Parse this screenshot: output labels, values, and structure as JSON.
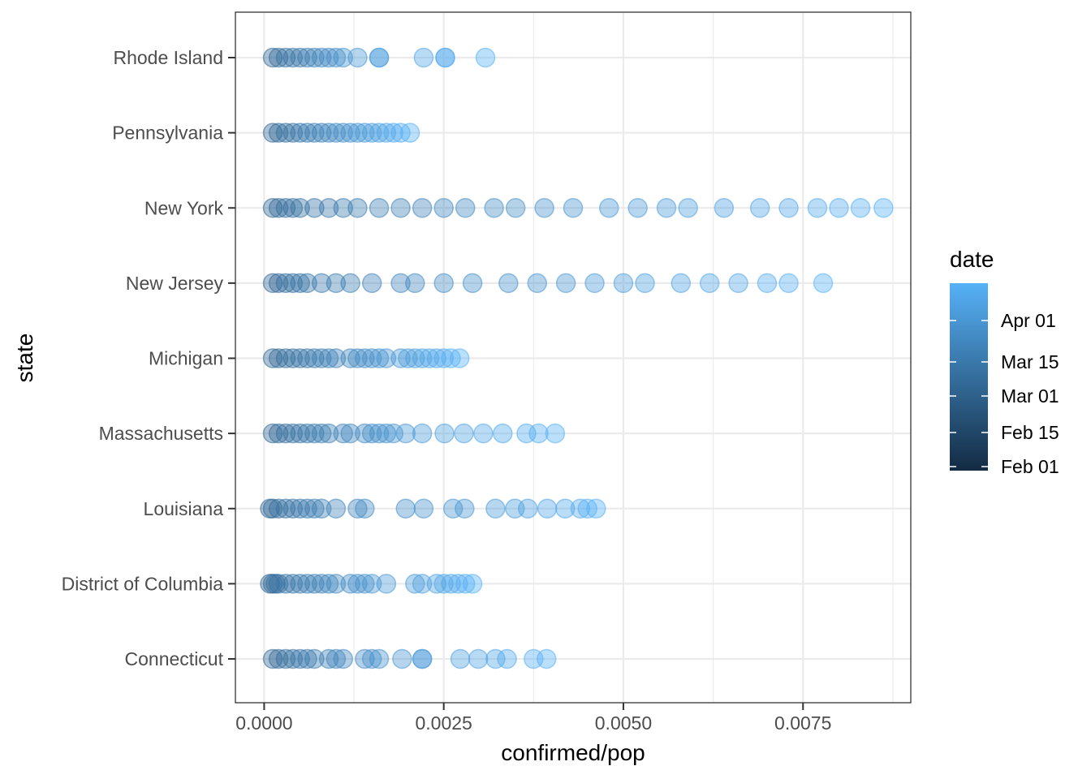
{
  "chart_data": {
    "type": "scatter",
    "xlabel": "confirmed/pop",
    "ylabel": "state",
    "xlim": [
      -0.0004,
      0.009
    ],
    "x_ticks": [
      0.0,
      0.0025,
      0.005,
      0.0075
    ],
    "x_tick_labels": [
      "0.0000",
      "0.0025",
      "0.0050",
      "0.0075"
    ],
    "grid": true,
    "legend": {
      "title": "date",
      "placement": "right",
      "labels": [
        "Apr 01",
        "Mar 15",
        "Mar 01",
        "Feb 15",
        "Feb 01"
      ],
      "color_low": "#132B43",
      "color_high": "#56B1F7"
    },
    "categories": [
      "Connecticut",
      "District of Columbia",
      "Louisiana",
      "Massachusetts",
      "Michigan",
      "New Jersey",
      "New York",
      "Pennsylvania",
      "Rhode Island"
    ],
    "series": [
      {
        "state": "Connecticut",
        "x": [
          0.00012,
          0.0002,
          0.0003,
          0.0004,
          0.0005,
          0.0006,
          0.0007,
          0.0009,
          0.001,
          0.0011,
          0.0014,
          0.0015,
          0.0016,
          0.00192,
          0.0022,
          0.0022,
          0.00273,
          0.00298,
          0.00322,
          0.00338,
          0.00375,
          0.00393
        ]
      },
      {
        "state": "District of Columbia",
        "x": [
          8e-05,
          0.00012,
          0.00016,
          0.0002,
          0.0003,
          0.0004,
          0.0005,
          0.0006,
          0.0007,
          0.0008,
          0.0009,
          0.001,
          0.0012,
          0.0013,
          0.0014,
          0.0015,
          0.0017,
          0.0021,
          0.0022,
          0.0024,
          0.0025,
          0.0026,
          0.0027,
          0.0028,
          0.0029
        ]
      },
      {
        "state": "Louisiana",
        "x": [
          8e-05,
          0.00012,
          0.0002,
          0.0003,
          0.0004,
          0.0005,
          0.0006,
          0.0007,
          0.0008,
          0.001,
          0.0013,
          0.0014,
          0.00197,
          0.00222,
          0.00263,
          0.00279,
          0.00322,
          0.00349,
          0.00367,
          0.00394,
          0.00419,
          0.0044,
          0.0045,
          0.00462
        ]
      },
      {
        "state": "Massachusetts",
        "x": [
          0.00012,
          0.0002,
          0.0003,
          0.0004,
          0.0005,
          0.0006,
          0.0007,
          0.0008,
          0.0009,
          0.0011,
          0.0012,
          0.0014,
          0.0015,
          0.0016,
          0.0017,
          0.0018,
          0.00197,
          0.0022,
          0.00251,
          0.00278,
          0.00305,
          0.00332,
          0.00365,
          0.00382,
          0.00405
        ]
      },
      {
        "state": "Michigan",
        "x": [
          0.00012,
          0.0002,
          0.0003,
          0.0004,
          0.0005,
          0.0006,
          0.0007,
          0.0008,
          0.0009,
          0.001,
          0.0012,
          0.0013,
          0.0014,
          0.0015,
          0.0016,
          0.0017,
          0.0019,
          0.002,
          0.0021,
          0.0022,
          0.0023,
          0.0024,
          0.0025,
          0.0026,
          0.00272
        ]
      },
      {
        "state": "New Jersey",
        "x": [
          0.00012,
          0.0002,
          0.0003,
          0.0004,
          0.0005,
          0.0006,
          0.0008,
          0.001,
          0.0012,
          0.0015,
          0.0019,
          0.0021,
          0.0025,
          0.0029,
          0.0034,
          0.0038,
          0.0042,
          0.0046,
          0.005,
          0.0053,
          0.0058,
          0.0062,
          0.0066,
          0.007,
          0.0073,
          0.00778
        ]
      },
      {
        "state": "New York",
        "x": [
          0.00012,
          0.0002,
          0.0003,
          0.0004,
          0.0005,
          0.0007,
          0.0009,
          0.0011,
          0.0013,
          0.0016,
          0.0019,
          0.0022,
          0.0025,
          0.0028,
          0.0032,
          0.0035,
          0.0039,
          0.0043,
          0.0048,
          0.0052,
          0.0056,
          0.0059,
          0.0064,
          0.0069,
          0.0073,
          0.0077,
          0.008,
          0.0083,
          0.00862
        ]
      },
      {
        "state": "Pennsylvania",
        "x": [
          0.00012,
          0.0002,
          0.0003,
          0.0004,
          0.0005,
          0.0006,
          0.0007,
          0.0008,
          0.0009,
          0.001,
          0.0011,
          0.0012,
          0.0013,
          0.0014,
          0.0015,
          0.0016,
          0.0017,
          0.0018,
          0.0019,
          0.00203
        ]
      },
      {
        "state": "Rhode Island",
        "x": [
          0.00012,
          0.0002,
          0.0003,
          0.0004,
          0.0005,
          0.0006,
          0.0007,
          0.0008,
          0.0009,
          0.001,
          0.0011,
          0.0013,
          0.0016,
          0.0016,
          0.00222,
          0.00252,
          0.00252,
          0.00308
        ]
      }
    ]
  }
}
